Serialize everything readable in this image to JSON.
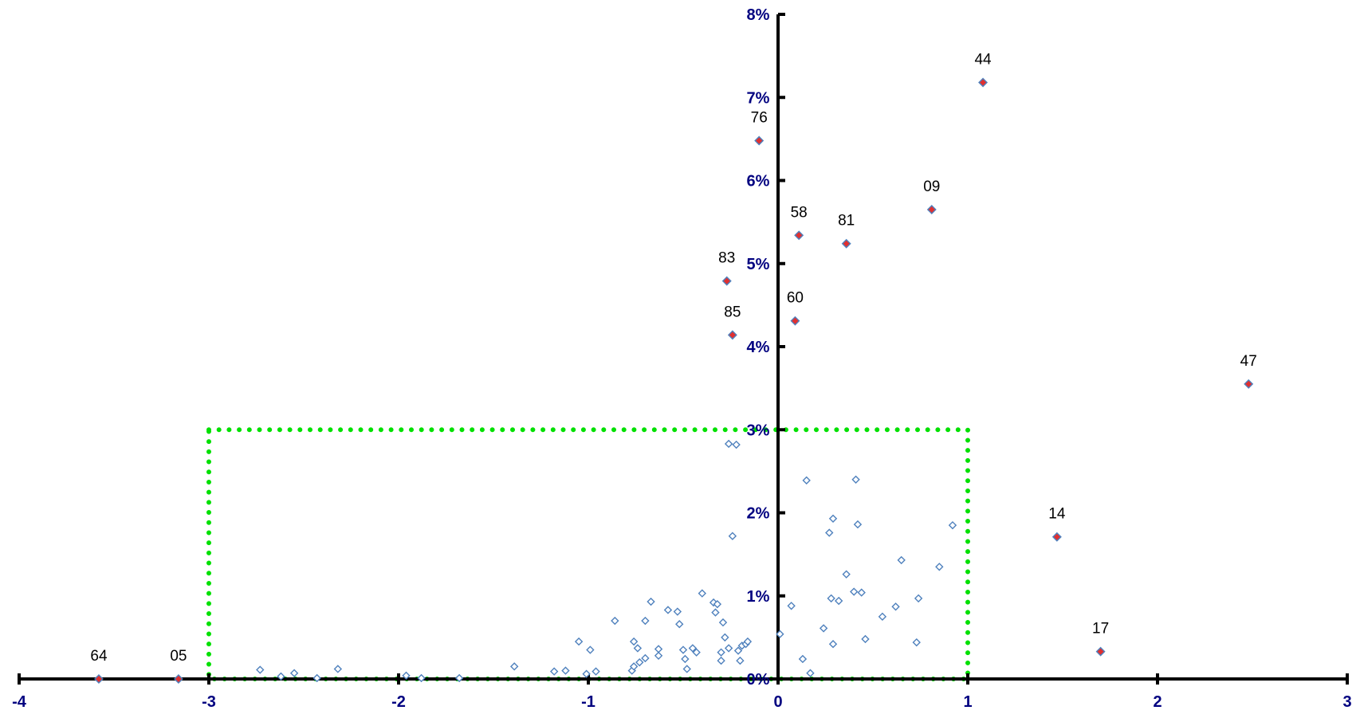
{
  "chart_data": {
    "type": "scatter",
    "title": "",
    "xlabel": "",
    "ylabel": "",
    "xlim": [
      -4,
      3
    ],
    "ylim": [
      0,
      0.08
    ],
    "x_ticks": [
      -4,
      -3,
      -2,
      -1,
      0,
      1,
      2,
      3
    ],
    "x_tick_labels": [
      "-4",
      "-3",
      "-2",
      "-1",
      "0",
      "1",
      "2",
      "3"
    ],
    "y_ticks": [
      0,
      0.01,
      0.02,
      0.03,
      0.04,
      0.05,
      0.06,
      0.07,
      0.08
    ],
    "y_tick_labels": [
      "0%",
      "1%",
      "2%",
      "3%",
      "4%",
      "5%",
      "6%",
      "7%",
      "8%"
    ],
    "grid": false,
    "legend": "none",
    "colors": {
      "axis": "#000000",
      "tick_label": "#000080",
      "unlabeled_point": "#4f81bd",
      "labeled_point_fill": "#e03030",
      "labeled_point_edge": "#4f81bd",
      "threshold_box": "#00e000"
    },
    "threshold_box": {
      "x": [
        -3,
        1
      ],
      "y": [
        0,
        0.03
      ]
    },
    "series": [
      {
        "points": [
          {
            "x": -3.58,
            "y": 0.0,
            "label": "64"
          },
          {
            "x": -3.16,
            "y": 0.0,
            "label": "05"
          },
          {
            "x": 1.08,
            "y": 0.0718,
            "label": "44"
          },
          {
            "x": -0.1,
            "y": 0.0648,
            "label": "76"
          },
          {
            "x": 0.81,
            "y": 0.0565,
            "label": "09"
          },
          {
            "x": 0.11,
            "y": 0.0534,
            "label": "58"
          },
          {
            "x": 0.36,
            "y": 0.0524,
            "label": "81"
          },
          {
            "x": -0.27,
            "y": 0.0479,
            "label": "83"
          },
          {
            "x": 0.09,
            "y": 0.0431,
            "label": "60"
          },
          {
            "x": -0.24,
            "y": 0.0414,
            "label": "85"
          },
          {
            "x": 2.48,
            "y": 0.0355,
            "label": "47"
          },
          {
            "x": 1.47,
            "y": 0.0171,
            "label": "14"
          },
          {
            "x": 1.7,
            "y": 0.0033,
            "label": "17"
          }
        ]
      },
      {
        "points": [
          {
            "x": -2.73,
            "y": 0.0011
          },
          {
            "x": -2.62,
            "y": 0.0003
          },
          {
            "x": -2.55,
            "y": 0.0007
          },
          {
            "x": -2.43,
            "y": 0.0001
          },
          {
            "x": -2.32,
            "y": 0.0012
          },
          {
            "x": -1.96,
            "y": 0.0004
          },
          {
            "x": -1.88,
            "y": 0.0001
          },
          {
            "x": -1.68,
            "y": 0.0001
          },
          {
            "x": -1.39,
            "y": 0.0015
          },
          {
            "x": -1.18,
            "y": 0.0009
          },
          {
            "x": -1.12,
            "y": 0.001
          },
          {
            "x": -1.05,
            "y": 0.0045
          },
          {
            "x": -1.01,
            "y": 0.0006
          },
          {
            "x": -0.99,
            "y": 0.0035
          },
          {
            "x": -0.96,
            "y": 0.0009
          },
          {
            "x": -0.86,
            "y": 0.007
          },
          {
            "x": -0.77,
            "y": 0.001
          },
          {
            "x": -0.76,
            "y": 0.0015
          },
          {
            "x": -0.76,
            "y": 0.0045
          },
          {
            "x": -0.74,
            "y": 0.0037
          },
          {
            "x": -0.73,
            "y": 0.002
          },
          {
            "x": -0.7,
            "y": 0.0025
          },
          {
            "x": -0.7,
            "y": 0.007
          },
          {
            "x": -0.67,
            "y": 0.0093
          },
          {
            "x": -0.63,
            "y": 0.0028
          },
          {
            "x": -0.63,
            "y": 0.0036
          },
          {
            "x": -0.58,
            "y": 0.0083
          },
          {
            "x": -0.53,
            "y": 0.0081
          },
          {
            "x": -0.52,
            "y": 0.0066
          },
          {
            "x": -0.5,
            "y": 0.0035
          },
          {
            "x": -0.49,
            "y": 0.0024
          },
          {
            "x": -0.48,
            "y": 0.0012
          },
          {
            "x": -0.45,
            "y": 0.0037
          },
          {
            "x": -0.43,
            "y": 0.0032
          },
          {
            "x": -0.4,
            "y": 0.0103
          },
          {
            "x": -0.34,
            "y": 0.0092
          },
          {
            "x": -0.33,
            "y": 0.008
          },
          {
            "x": -0.32,
            "y": 0.009
          },
          {
            "x": -0.3,
            "y": 0.0022
          },
          {
            "x": -0.3,
            "y": 0.0032
          },
          {
            "x": -0.29,
            "y": 0.0068
          },
          {
            "x": -0.28,
            "y": 0.005
          },
          {
            "x": -0.26,
            "y": 0.0037
          },
          {
            "x": -0.26,
            "y": 0.0283
          },
          {
            "x": -0.24,
            "y": 0.0172
          },
          {
            "x": -0.22,
            "y": 0.0282
          },
          {
            "x": -0.21,
            "y": 0.0034
          },
          {
            "x": -0.2,
            "y": 0.0022
          },
          {
            "x": -0.19,
            "y": 0.004
          },
          {
            "x": -0.17,
            "y": 0.0042
          },
          {
            "x": -0.16,
            "y": 0.0045
          },
          {
            "x": 0.01,
            "y": 0.0054
          },
          {
            "x": 0.07,
            "y": 0.0088
          },
          {
            "x": 0.13,
            "y": 0.0024
          },
          {
            "x": 0.15,
            "y": 0.0239
          },
          {
            "x": 0.17,
            "y": 0.0007
          },
          {
            "x": 0.24,
            "y": 0.0061
          },
          {
            "x": 0.27,
            "y": 0.0176
          },
          {
            "x": 0.28,
            "y": 0.0097
          },
          {
            "x": 0.29,
            "y": 0.0042
          },
          {
            "x": 0.29,
            "y": 0.0193
          },
          {
            "x": 0.32,
            "y": 0.0094
          },
          {
            "x": 0.36,
            "y": 0.0126
          },
          {
            "x": 0.4,
            "y": 0.0105
          },
          {
            "x": 0.41,
            "y": 0.024
          },
          {
            "x": 0.42,
            "y": 0.0186
          },
          {
            "x": 0.44,
            "y": 0.0104
          },
          {
            "x": 0.46,
            "y": 0.0048
          },
          {
            "x": 0.55,
            "y": 0.0075
          },
          {
            "x": 0.62,
            "y": 0.0087
          },
          {
            "x": 0.65,
            "y": 0.0143
          },
          {
            "x": 0.73,
            "y": 0.0044
          },
          {
            "x": 0.74,
            "y": 0.0097
          },
          {
            "x": 0.85,
            "y": 0.0135
          },
          {
            "x": 0.92,
            "y": 0.0185
          }
        ]
      }
    ]
  }
}
